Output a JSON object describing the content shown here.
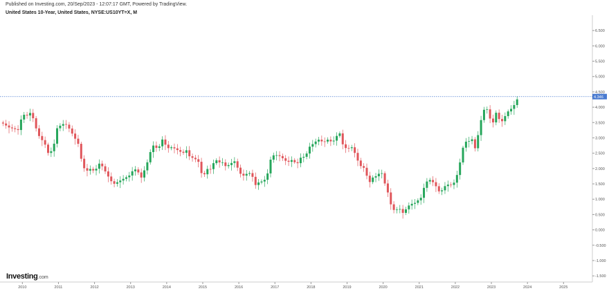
{
  "header": {
    "published": "Published on Investing.com, 20/Sep/2023 - 12:07:17 GMT, Powered by TradingView.",
    "title": "United States 10-Year, United States, NYSE:US10YT=X, M"
  },
  "logo": {
    "brand": "Investing",
    "suffix": ".com"
  },
  "colors": {
    "up": "#26a65b",
    "down": "#e0565b",
    "last_price_line": "#4a7bd0",
    "last_price_badge": "#4a7bd0",
    "axis": "#555555"
  },
  "chart_data": {
    "type": "candlestick",
    "timeframe": "M",
    "symbol": "NYSE:US10YT=X",
    "xlim": [
      2009.38,
      2025.8
    ],
    "ylim": [
      -1.7,
      7.0
    ],
    "x_ticks": [
      "2010",
      "2011",
      "2012",
      "2013",
      "2014",
      "2015",
      "2016",
      "2017",
      "2018",
      "2019",
      "2020",
      "2021",
      "2022",
      "2023",
      "2024",
      "2025"
    ],
    "y_ticks": [
      "6.500",
      "6.000",
      "5.500",
      "5.000",
      "4.500",
      "4.000",
      "3.500",
      "3.000",
      "2.500",
      "2.000",
      "1.500",
      "1.000",
      "0.500",
      "0.000",
      "-0.500",
      "-1.000",
      "-1.500"
    ],
    "last_price": 4.346,
    "last_price_label": "4.346",
    "grid": false,
    "anchors": [
      [
        2009.4,
        3.5
      ],
      [
        2009.5,
        3.45
      ],
      [
        2009.6,
        3.35
      ],
      [
        2009.75,
        3.3
      ],
      [
        2009.9,
        3.25
      ],
      [
        2010.0,
        3.8
      ],
      [
        2010.1,
        3.7
      ],
      [
        2010.25,
        3.85
      ],
      [
        2010.35,
        3.4
      ],
      [
        2010.5,
        2.95
      ],
      [
        2010.6,
        2.9
      ],
      [
        2010.7,
        2.5
      ],
      [
        2010.85,
        2.6
      ],
      [
        2010.95,
        3.3
      ],
      [
        2011.1,
        3.45
      ],
      [
        2011.2,
        3.45
      ],
      [
        2011.3,
        3.3
      ],
      [
        2011.45,
        3.0
      ],
      [
        2011.55,
        2.8
      ],
      [
        2011.65,
        2.2
      ],
      [
        2011.75,
        1.9
      ],
      [
        2011.9,
        2.0
      ],
      [
        2012.0,
        1.9
      ],
      [
        2012.15,
        2.2
      ],
      [
        2012.3,
        1.9
      ],
      [
        2012.45,
        1.6
      ],
      [
        2012.55,
        1.5
      ],
      [
        2012.7,
        1.6
      ],
      [
        2012.85,
        1.7
      ],
      [
        2012.95,
        1.75
      ],
      [
        2013.1,
        2.0
      ],
      [
        2013.2,
        1.9
      ],
      [
        2013.3,
        1.7
      ],
      [
        2013.45,
        2.15
      ],
      [
        2013.55,
        2.55
      ],
      [
        2013.65,
        2.8
      ],
      [
        2013.75,
        2.6
      ],
      [
        2013.9,
        3.0
      ],
      [
        2014.0,
        2.65
      ],
      [
        2014.15,
        2.7
      ],
      [
        2014.3,
        2.6
      ],
      [
        2014.45,
        2.5
      ],
      [
        2014.55,
        2.6
      ],
      [
        2014.65,
        2.35
      ],
      [
        2014.75,
        2.35
      ],
      [
        2014.9,
        2.2
      ],
      [
        2015.0,
        1.65
      ],
      [
        2015.1,
        2.0
      ],
      [
        2015.2,
        1.95
      ],
      [
        2015.35,
        2.3
      ],
      [
        2015.45,
        2.2
      ],
      [
        2015.55,
        2.2
      ],
      [
        2015.65,
        2.05
      ],
      [
        2015.75,
        2.15
      ],
      [
        2015.9,
        2.25
      ],
      [
        2016.0,
        1.9
      ],
      [
        2016.1,
        1.75
      ],
      [
        2016.25,
        1.85
      ],
      [
        2016.35,
        1.85
      ],
      [
        2016.45,
        1.45
      ],
      [
        2016.55,
        1.55
      ],
      [
        2016.7,
        1.6
      ],
      [
        2016.8,
        1.85
      ],
      [
        2016.9,
        2.4
      ],
      [
        2017.0,
        2.45
      ],
      [
        2017.15,
        2.4
      ],
      [
        2017.25,
        2.3
      ],
      [
        2017.35,
        2.2
      ],
      [
        2017.5,
        2.3
      ],
      [
        2017.6,
        2.1
      ],
      [
        2017.7,
        2.35
      ],
      [
        2017.85,
        2.4
      ],
      [
        2017.95,
        2.7
      ],
      [
        2018.1,
        2.85
      ],
      [
        2018.2,
        2.95
      ],
      [
        2018.35,
        2.85
      ],
      [
        2018.45,
        2.95
      ],
      [
        2018.6,
        2.85
      ],
      [
        2018.7,
        3.05
      ],
      [
        2018.8,
        3.15
      ],
      [
        2018.9,
        2.7
      ],
      [
        2019.0,
        2.65
      ],
      [
        2019.15,
        2.7
      ],
      [
        2019.25,
        2.4
      ],
      [
        2019.35,
        2.1
      ],
      [
        2019.5,
        2.0
      ],
      [
        2019.6,
        1.5
      ],
      [
        2019.7,
        1.7
      ],
      [
        2019.8,
        1.75
      ],
      [
        2019.95,
        1.9
      ],
      [
        2020.05,
        1.5
      ],
      [
        2020.15,
        1.15
      ],
      [
        2020.25,
        0.65
      ],
      [
        2020.35,
        0.65
      ],
      [
        2020.45,
        0.7
      ],
      [
        2020.55,
        0.55
      ],
      [
        2020.65,
        0.7
      ],
      [
        2020.75,
        0.85
      ],
      [
        2020.85,
        0.85
      ],
      [
        2020.95,
        0.95
      ],
      [
        2021.05,
        1.05
      ],
      [
        2021.15,
        1.45
      ],
      [
        2021.25,
        1.65
      ],
      [
        2021.35,
        1.6
      ],
      [
        2021.45,
        1.45
      ],
      [
        2021.55,
        1.25
      ],
      [
        2021.65,
        1.3
      ],
      [
        2021.75,
        1.5
      ],
      [
        2021.85,
        1.45
      ],
      [
        2021.95,
        1.5
      ],
      [
        2022.05,
        1.8
      ],
      [
        2022.15,
        2.3
      ],
      [
        2022.25,
        2.9
      ],
      [
        2022.35,
        2.85
      ],
      [
        2022.45,
        3.0
      ],
      [
        2022.55,
        2.65
      ],
      [
        2022.65,
        3.2
      ],
      [
        2022.75,
        3.8
      ],
      [
        2022.85,
        4.05
      ],
      [
        2022.95,
        3.65
      ],
      [
        2023.05,
        3.5
      ],
      [
        2023.15,
        3.9
      ],
      [
        2023.25,
        3.45
      ],
      [
        2023.35,
        3.65
      ],
      [
        2023.45,
        3.85
      ],
      [
        2023.55,
        3.95
      ],
      [
        2023.65,
        4.1
      ],
      [
        2023.75,
        4.346
      ]
    ]
  }
}
